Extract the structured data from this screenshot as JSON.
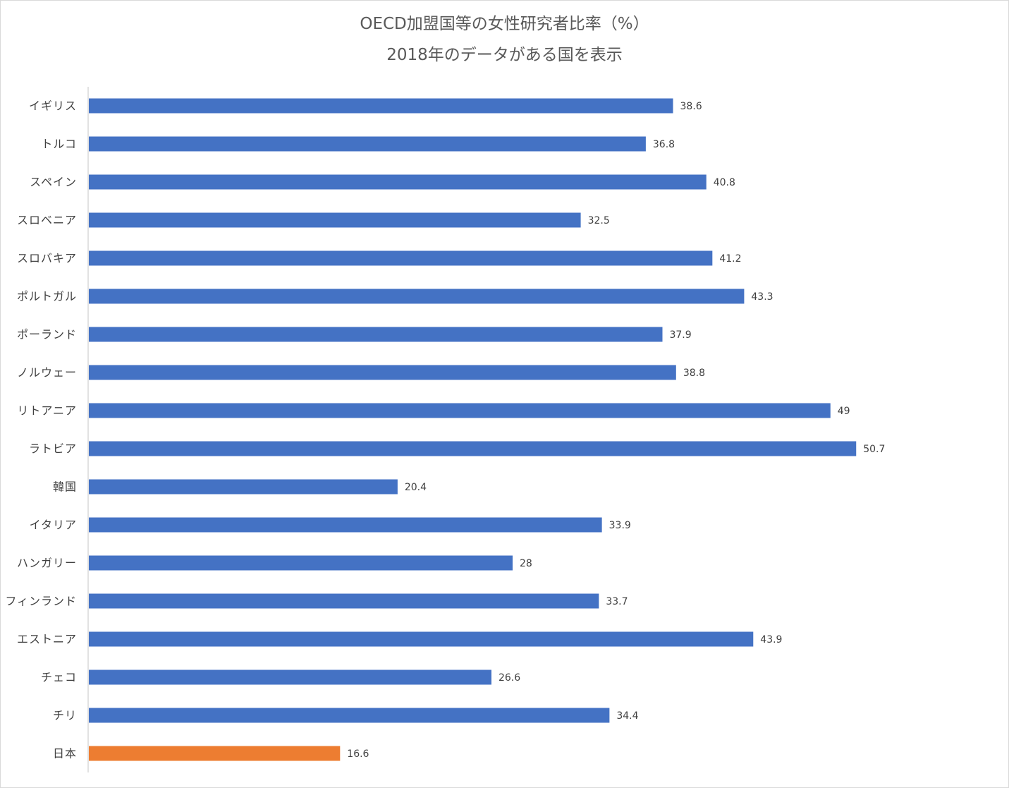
{
  "chart_data": {
    "type": "bar",
    "orientation": "horizontal",
    "title": "OECD加盟国等の女性研究者比率（%）",
    "subtitle": "2018年のデータがある国を表示",
    "categories": [
      "イギリス",
      "トルコ",
      "スペイン",
      "スロベニア",
      "スロバキア",
      "ポルトガル",
      "ポーランド",
      "ノルウェー",
      "リトアニア",
      "ラトビア",
      "韓国",
      "イタリア",
      "ハンガリー",
      "フィンランド",
      "エストニア",
      "チェコ",
      "チリ",
      "日本"
    ],
    "values": [
      38.6,
      36.8,
      40.8,
      32.5,
      41.2,
      43.3,
      37.9,
      38.8,
      49,
      50.7,
      20.4,
      33.9,
      28,
      33.7,
      43.9,
      26.6,
      34.4,
      16.6
    ],
    "value_labels": [
      "38.6",
      "36.8",
      "40.8",
      "32.5",
      "41.2",
      "43.3",
      "37.9",
      "38.8",
      "49",
      "50.7",
      "20.4",
      "33.9",
      "28",
      "33.7",
      "43.9",
      "26.6",
      "34.4",
      "16.6"
    ],
    "highlight_category": "日本",
    "xlim": [
      0,
      56
    ],
    "xlabel": "",
    "ylabel": "",
    "grid": false,
    "legend": "none",
    "data_labels": true,
    "colors": {
      "bar": "#4472c4",
      "highlight": "#ed7d31",
      "axis": "#d9d9d9"
    }
  }
}
